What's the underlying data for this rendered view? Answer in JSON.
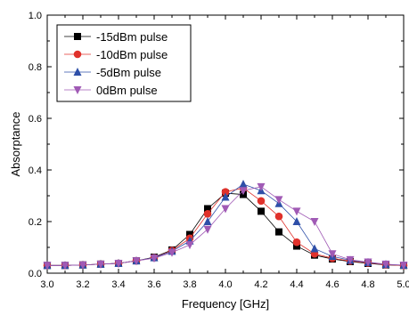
{
  "chart_data": {
    "type": "line",
    "xlabel": "Frequency [GHz]",
    "ylabel": "Absorptance",
    "xlim": [
      3.0,
      5.0
    ],
    "ylim": [
      0.0,
      1.0
    ],
    "xticks": [
      "3.0",
      "3.2",
      "3.4",
      "3.6",
      "3.8",
      "4.0",
      "4.2",
      "4.4",
      "4.6",
      "4.8",
      "5.0"
    ],
    "yticks": [
      "0.0",
      "0.2",
      "0.4",
      "0.6",
      "0.8",
      "1.0"
    ],
    "grid": false,
    "legend_position": "top-left",
    "x": [
      3.0,
      3.1,
      3.2,
      3.3,
      3.4,
      3.5,
      3.6,
      3.7,
      3.8,
      3.9,
      4.0,
      4.1,
      4.2,
      4.3,
      4.4,
      4.5,
      4.6,
      4.7,
      4.8,
      4.9,
      5.0
    ],
    "series": [
      {
        "name": "-15dBm pulse",
        "color": "#000000",
        "marker": "square",
        "values": [
          0.03,
          0.03,
          0.032,
          0.035,
          0.038,
          0.048,
          0.062,
          0.09,
          0.15,
          0.25,
          0.31,
          0.305,
          0.24,
          0.16,
          0.105,
          0.07,
          0.055,
          0.045,
          0.038,
          0.032,
          0.03
        ]
      },
      {
        "name": "-10dBm pulse",
        "color": "#e0312b",
        "marker": "circle",
        "values": [
          0.03,
          0.03,
          0.032,
          0.035,
          0.038,
          0.048,
          0.06,
          0.088,
          0.135,
          0.23,
          0.315,
          0.33,
          0.28,
          0.22,
          0.12,
          0.075,
          0.058,
          0.047,
          0.04,
          0.033,
          0.03
        ]
      },
      {
        "name": "-5dBm pulse",
        "color": "#2e4fa8",
        "marker": "triangle-up",
        "values": [
          0.03,
          0.03,
          0.032,
          0.035,
          0.038,
          0.048,
          0.06,
          0.085,
          0.125,
          0.2,
          0.295,
          0.345,
          0.32,
          0.27,
          0.2,
          0.095,
          0.065,
          0.05,
          0.042,
          0.034,
          0.031
        ]
      },
      {
        "name": "0dBm pulse",
        "color": "#a05ab5",
        "marker": "triangle-down",
        "values": [
          0.03,
          0.03,
          0.032,
          0.035,
          0.038,
          0.048,
          0.058,
          0.08,
          0.11,
          0.17,
          0.25,
          0.32,
          0.335,
          0.285,
          0.24,
          0.2,
          0.075,
          0.052,
          0.043,
          0.035,
          0.031
        ]
      }
    ]
  }
}
